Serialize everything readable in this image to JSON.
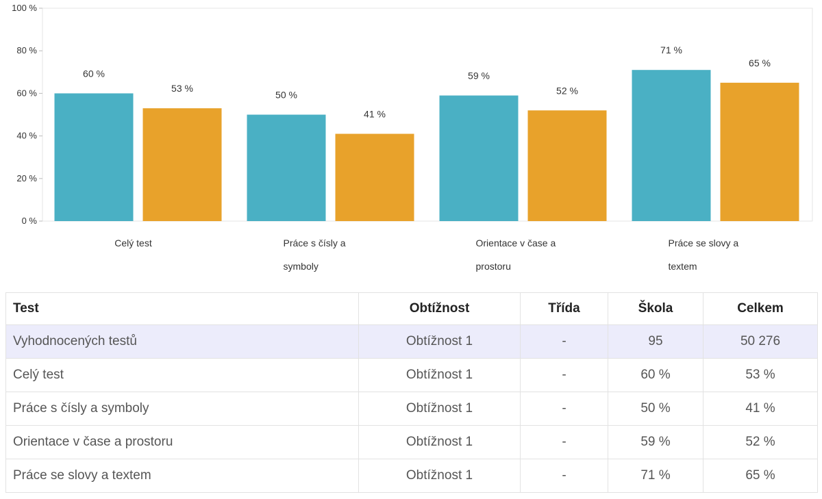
{
  "chart_data": {
    "type": "bar",
    "categories": [
      [
        "Celý test"
      ],
      [
        "Práce s čísly a",
        "symboly"
      ],
      [
        "Orientace v čase a",
        "prostoru"
      ],
      [
        "Práce se slovy a",
        "textem"
      ]
    ],
    "series": [
      {
        "values": [
          60,
          50,
          59,
          71
        ],
        "labels": [
          "60 %",
          "50 %",
          "59 %",
          "71 %"
        ],
        "color": "#4ab0c4"
      },
      {
        "values": [
          53,
          41,
          52,
          65
        ],
        "labels": [
          "53 %",
          "41 %",
          "52 %",
          "65 %"
        ],
        "color": "#e8a22b"
      }
    ],
    "ylim": [
      0,
      100
    ],
    "yticks": [
      0,
      20,
      40,
      60,
      80,
      100
    ],
    "ytick_labels": [
      "0 %",
      "20 %",
      "40 %",
      "60 %",
      "80 %",
      "100 %"
    ],
    "grid": false,
    "legend": "none"
  },
  "table": {
    "headers": [
      "Test",
      "Obtížnost",
      "Třída",
      "Škola",
      "Celkem"
    ],
    "rows": [
      [
        "Vyhodnocených testů",
        "Obtížnost 1",
        "-",
        "95",
        "50 276"
      ],
      [
        "Celý test",
        "Obtížnost 1",
        "-",
        "60 %",
        "53 %"
      ],
      [
        "Práce s čísly a symboly",
        "Obtížnost 1",
        "-",
        "50 %",
        "41 %"
      ],
      [
        "Orientace v čase a prostoru",
        "Obtížnost 1",
        "-",
        "59 %",
        "52 %"
      ],
      [
        "Práce se slovy a textem",
        "Obtížnost 1",
        "-",
        "71 %",
        "65 %"
      ]
    ]
  }
}
